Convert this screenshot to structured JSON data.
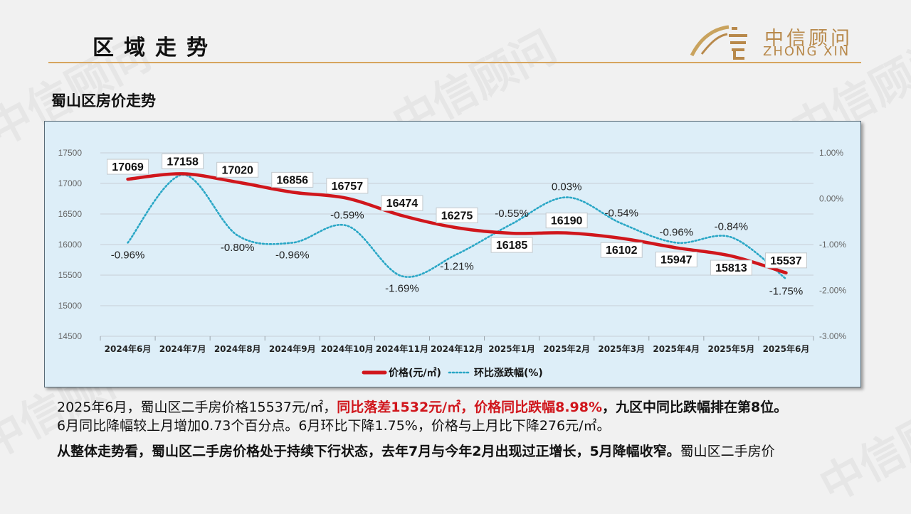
{
  "header": {
    "section_title": "区域走势",
    "logo_cn": "中信顾问",
    "logo_en": "ZHONG XIN",
    "watermark": "中信顾问"
  },
  "chart_title": "蜀山区房价走势",
  "chart_data": {
    "type": "line",
    "categories": [
      "2024年6月",
      "2024年7月",
      "2024年8月",
      "2024年9月",
      "2024年10月",
      "2024年11月",
      "2024年12月",
      "2025年1月",
      "2025年2月",
      "2025年3月",
      "2025年4月",
      "2025年5月",
      "2025年6月"
    ],
    "series": [
      {
        "name": "价格(元/㎡)",
        "axis": "left",
        "color": "#d0161c",
        "style": "solid",
        "values": [
          17069,
          17158,
          17020,
          16856,
          16757,
          16474,
          16275,
          16185,
          16190,
          16102,
          15947,
          15813,
          15537
        ],
        "labels": [
          "17069",
          "17158",
          "17020",
          "16856",
          "16757",
          "16474",
          "16275",
          "16185",
          "16190",
          "16102",
          "15947",
          "15813",
          "15537"
        ]
      },
      {
        "name": "环比涨跌幅(%)",
        "axis": "right",
        "color": "#2aa7c6",
        "style": "dotted",
        "values": [
          -0.96,
          0.52,
          -0.8,
          -0.96,
          -0.59,
          -1.69,
          -1.21,
          -0.55,
          0.03,
          -0.54,
          -0.96,
          -0.84,
          -1.75
        ],
        "labels": [
          "-0.96%",
          "0.52%",
          "-0.80%",
          "-0.96%",
          "-0.59%",
          "-1.69%",
          "-1.21%",
          "-0.55%",
          "0.03%",
          "-0.54%",
          "-0.96%",
          "-0.84%",
          "-1.75%"
        ]
      }
    ],
    "y_left": {
      "min": 14500,
      "max": 17500,
      "ticks": [
        "17500",
        "17000",
        "16500",
        "16000",
        "15500",
        "15000",
        "14500"
      ]
    },
    "y_right": {
      "min": -3,
      "max": 1,
      "ticks": [
        "1.00%",
        "0.00%",
        "-1.00%",
        "-2.00%",
        "-3.00%"
      ]
    },
    "grid": true,
    "legend": "bottom"
  },
  "paragraphs": {
    "p1_a": "2025年6月，蜀山区二手房价格15537元/㎡，",
    "p1_b": "同比落差1532元/㎡，价格同比跌幅8.98%",
    "p1_c": "，九区中同比跌幅排在第8位。",
    "p2": "6月同比降幅较上月增加0.73个百分点。6月环比下降1.75%，价格与上月比下降276元/㎡。",
    "p3_a": "从整体走势看，蜀山区二手房价格处于持续下行状态，去年7月与今年2月出现过正增长，5月降幅收窄。",
    "p3_b": "蜀山区二手房价"
  }
}
